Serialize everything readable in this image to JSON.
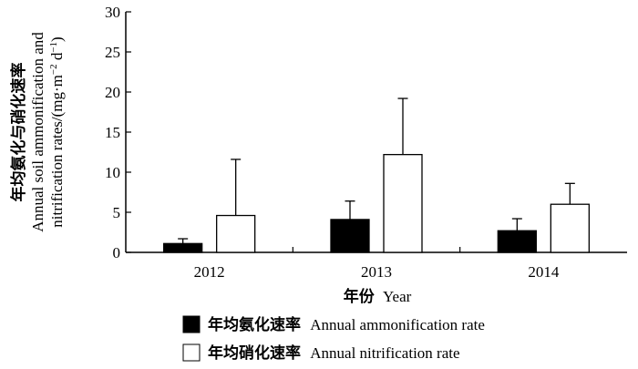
{
  "chart_data": {
    "type": "bar",
    "categories": [
      "2012",
      "2013",
      "2014"
    ],
    "series": [
      {
        "name_zh": "年均氨化速率",
        "name_en": "Annual ammonification rate",
        "values": [
          1.1,
          4.1,
          2.7
        ],
        "errors": [
          0.6,
          2.3,
          1.5
        ],
        "fill": "#000000"
      },
      {
        "name_zh": "年均硝化速率",
        "name_en": "Annual nitrification rate",
        "values": [
          4.6,
          12.2,
          6.0
        ],
        "errors": [
          7.0,
          7.0,
          2.6
        ],
        "fill": "#ffffff"
      }
    ],
    "ylim": [
      0,
      30
    ],
    "yticks": [
      0,
      5,
      10,
      15,
      20,
      25,
      30
    ],
    "xlabel_zh": "年份",
    "xlabel_en": "Year",
    "ylabel_zh": "年均氨化与硝化速率",
    "ylabel_en_line1": "Annual soil ammonification and",
    "ylabel_en_line2": "nitrification rates/(mg·m",
    "ylabel_en_sup1": "−2",
    "ylabel_en_mid": " d",
    "ylabel_en_sup2": "−1",
    "ylabel_en_end": ")",
    "grid": false,
    "legend_position": "bottom"
  }
}
